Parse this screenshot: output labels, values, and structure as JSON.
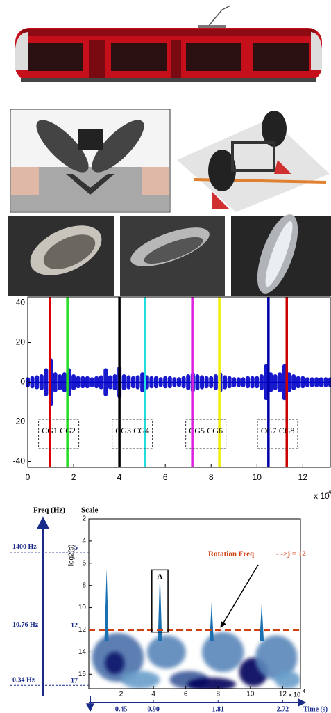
{
  "chart_data": [
    {
      "type": "signal",
      "xlim": [
        0,
        13.2
      ],
      "ylim": [
        -43,
        43
      ],
      "xticks": [
        0,
        2,
        4,
        6,
        8,
        10,
        12
      ],
      "yticks": [
        -40,
        -20,
        0,
        20,
        40
      ],
      "x_multiplier": {
        "base": "x 10",
        "exponent": "4"
      },
      "signal": {
        "color": "#0000c8",
        "x": [
          0,
          0.2,
          0.4,
          0.6,
          0.8,
          1.0,
          1.2,
          1.4,
          1.6,
          1.8,
          2.0,
          2.2,
          2.4,
          2.6,
          2.8,
          3.0,
          3.2,
          3.4,
          3.6,
          3.8,
          4.0,
          4.2,
          4.4,
          4.6,
          4.8,
          5.0,
          5.2,
          5.4,
          5.6,
          5.8,
          6.0,
          6.2,
          6.4,
          6.6,
          6.8,
          7.0,
          7.2,
          7.4,
          7.6,
          7.8,
          8.0,
          8.2,
          8.4,
          8.6,
          8.8,
          9.0,
          9.2,
          9.4,
          9.6,
          9.8,
          10.0,
          10.2,
          10.4,
          10.6,
          10.8,
          11.0,
          11.2,
          11.4,
          11.6,
          11.8,
          12.0,
          12.2,
          12.4,
          12.6,
          12.8,
          13.0,
          13.2
        ],
        "values": [
          1.5,
          2,
          2.5,
          3,
          6,
          11,
          4,
          3,
          4,
          6,
          3,
          2,
          2,
          2,
          1.5,
          2,
          2.5,
          6,
          2.5,
          3,
          7,
          3,
          2.5,
          2,
          2.5,
          4,
          2.5,
          2,
          2,
          1.5,
          2,
          2,
          1.5,
          1.5,
          2,
          3,
          4,
          3,
          2.5,
          2,
          2,
          3,
          4,
          2.5,
          2,
          1.5,
          1.5,
          1.5,
          2,
          2,
          2,
          3,
          8,
          4,
          3,
          4,
          8,
          4,
          3,
          2,
          2,
          1.5,
          1.5,
          1.5,
          1.5,
          1.5,
          1.5
        ]
      },
      "markers": [
        {
          "name": "CG1",
          "x": 0.97,
          "color": "#dd0000"
        },
        {
          "name": "CG2",
          "x": 1.73,
          "color": "#22dd22"
        },
        {
          "name": "CG3",
          "x": 4.0,
          "color": "#000000"
        },
        {
          "name": "CG4",
          "x": 5.12,
          "color": "#22dddd"
        },
        {
          "name": "CG5",
          "x": 7.18,
          "color": "#dd22dd"
        },
        {
          "name": "CG6",
          "x": 8.36,
          "color": "#eeee00"
        },
        {
          "name": "CG7",
          "x": 10.5,
          "color": "#0000aa"
        },
        {
          "name": "CG8",
          "x": 11.3,
          "color": "#cc0000"
        }
      ]
    },
    {
      "type": "scalogram",
      "freq_label": "Freq (Hz)",
      "scale_label": "Scale",
      "y_label": "log2(s)",
      "xlim": [
        0,
        13.1
      ],
      "ylim": [
        2,
        17.3
      ],
      "xticks": [
        2,
        4,
        6,
        8,
        10,
        12
      ],
      "yticks": [
        2,
        4,
        6,
        8,
        10,
        12,
        14,
        16
      ],
      "x_multiplier": {
        "base": "x 10",
        "exponent": "4"
      },
      "frequency_marks": [
        {
          "label": "1400 Hz",
          "scale": 5
        },
        {
          "label": "10.76 Hz",
          "scale": 12
        },
        {
          "label": "0.34 Hz",
          "scale": 17
        }
      ],
      "time_axis": {
        "label": "Time (s)",
        "ticks": [
          {
            "value": 2,
            "label": "0.45"
          },
          {
            "value": 4,
            "label": "0.90"
          },
          {
            "value": 8,
            "label": "1.81"
          },
          {
            "value": 12,
            "label": "2.72"
          }
        ]
      },
      "threshold": {
        "scale": 12,
        "label": "Rotation Freq",
        "annotation": "- ->j = 12",
        "color": "#d04010"
      },
      "box": {
        "label": "A",
        "x": [
          3.9,
          4.9
        ],
        "scale": [
          6.6,
          12.2
        ]
      },
      "ridges": [
        {
          "x": 1.1,
          "top": 6.5
        },
        {
          "x": 4.4,
          "top": 6.8
        },
        {
          "x": 7.6,
          "top": 9.5
        },
        {
          "x": 10.7,
          "top": 9.5
        }
      ],
      "blobs": [
        {
          "x": 1.8,
          "scale": 14.5,
          "rx": 1.6,
          "ry": 2.2,
          "intensity": 0.5
        },
        {
          "x": 1.6,
          "scale": 15,
          "rx": 0.6,
          "ry": 1,
          "intensity": 0.9
        },
        {
          "x": 4.8,
          "scale": 14,
          "rx": 1.2,
          "ry": 1.5,
          "intensity": 0.4
        },
        {
          "x": 6.2,
          "scale": 16.5,
          "rx": 1.2,
          "ry": 0.8,
          "intensity": 0.6
        },
        {
          "x": 7.6,
          "scale": 16.9,
          "rx": 1.5,
          "ry": 0.6,
          "intensity": 1
        },
        {
          "x": 8.3,
          "scale": 14,
          "rx": 1.3,
          "ry": 1.8,
          "intensity": 0.4
        },
        {
          "x": 10.2,
          "scale": 15.8,
          "rx": 0.9,
          "ry": 1.3,
          "intensity": 1
        },
        {
          "x": 11.6,
          "scale": 14.5,
          "rx": 1.3,
          "ry": 2,
          "intensity": 0.4
        },
        {
          "x": 3.2,
          "scale": 16.5,
          "rx": 1.2,
          "ry": 0.8,
          "intensity": 0.3
        },
        {
          "x": 12.3,
          "scale": 16.5,
          "rx": 0.8,
          "ry": 0.8,
          "intensity": 0.3
        }
      ]
    }
  ]
}
